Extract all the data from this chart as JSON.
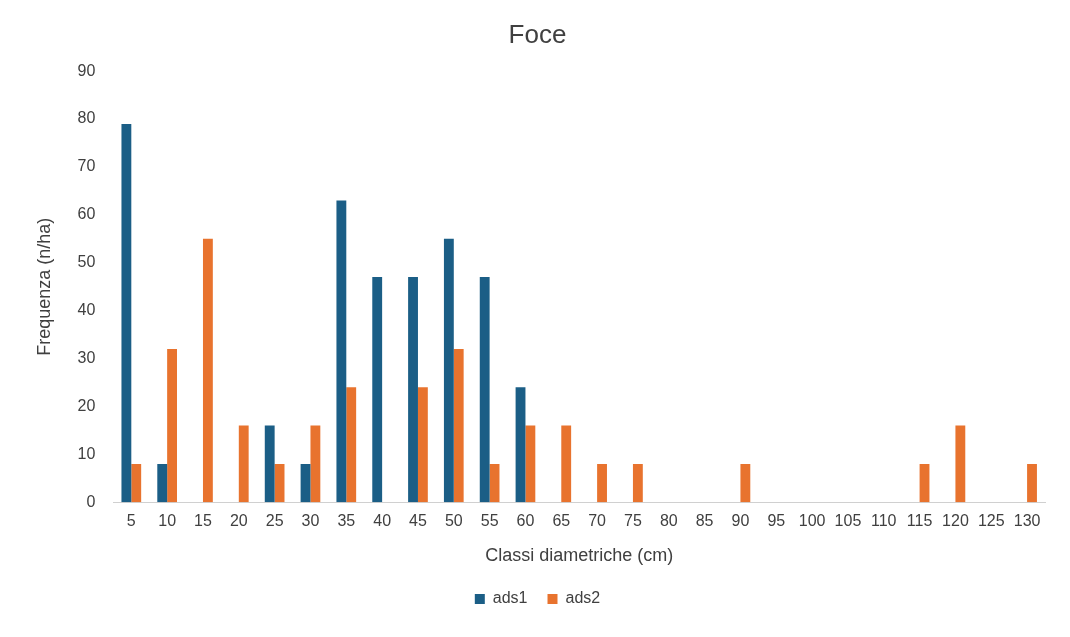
{
  "chart_data": {
    "type": "bar",
    "title": "Foce",
    "xlabel": "Classi diametriche (cm)",
    "ylabel": "Frequenza (n/ha)",
    "categories": [
      "5",
      "10",
      "15",
      "20",
      "25",
      "30",
      "35",
      "40",
      "45",
      "50",
      "55",
      "60",
      "65",
      "70",
      "75",
      "80",
      "85",
      "90",
      "95",
      "100",
      "105",
      "110",
      "115",
      "120",
      "125",
      "130"
    ],
    "series": [
      {
        "name": "ads1",
        "color": "#1b5e86",
        "values": [
          79,
          8,
          0,
          0,
          16,
          8,
          63,
          47,
          47,
          55,
          47,
          24,
          0,
          0,
          0,
          0,
          0,
          0,
          0,
          0,
          0,
          0,
          0,
          0,
          0,
          0
        ]
      },
      {
        "name": "ads2",
        "color": "#e8732e",
        "values": [
          8,
          32,
          55,
          16,
          8,
          16,
          24,
          0,
          24,
          32,
          8,
          16,
          16,
          8,
          8,
          0,
          0,
          8,
          0,
          0,
          0,
          0,
          8,
          16,
          0,
          8
        ]
      }
    ],
    "ylim": [
      0,
      90
    ],
    "yticks": [
      0,
      10,
      20,
      30,
      40,
      50,
      60,
      70,
      80,
      90
    ],
    "grid": false,
    "legend": "bottom"
  }
}
